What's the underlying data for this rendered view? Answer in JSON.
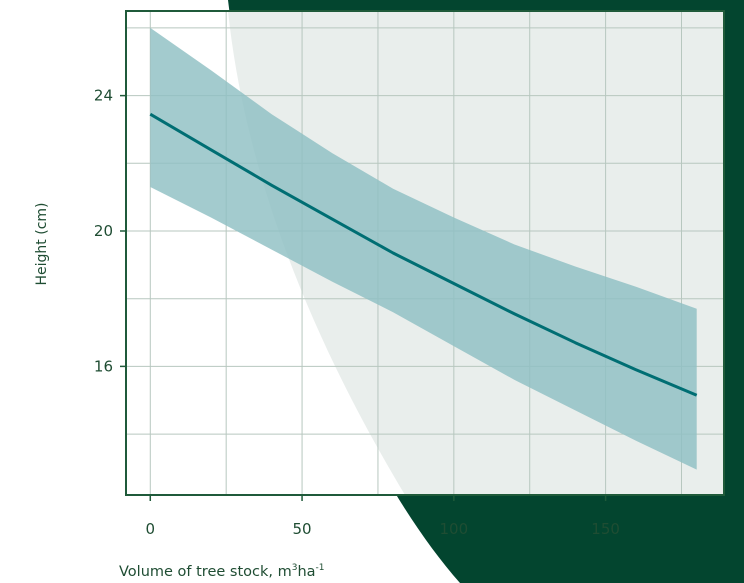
{
  "colors": {
    "background_dark": "#03452f",
    "background_light": "#ffffff",
    "plot_panel": "#e9eeec",
    "frame": "#1f5a3a",
    "grid": "#b7c7bf",
    "band": "#8fbfc3",
    "line": "#006e73",
    "text": "#1f4d33"
  },
  "chart_data": {
    "type": "line",
    "xlabel_parts": [
      "Volume of tree stock, m",
      "3",
      "ha",
      "-1"
    ],
    "xlabel": "Volume of tree stock, m³ha⁻¹",
    "ylabel": "Height (cm)",
    "xlim": [
      -8,
      189
    ],
    "ylim": [
      12.2,
      26.5
    ],
    "x_ticks": [
      0,
      50,
      100,
      150
    ],
    "x_tick_labels": [
      "0",
      "50",
      "100",
      "150"
    ],
    "y_ticks": [
      16,
      20,
      24
    ],
    "y_tick_labels": [
      "16",
      "20",
      "24"
    ],
    "x_grid": [
      0,
      25,
      50,
      75,
      100,
      125,
      150,
      175
    ],
    "y_grid": [
      14,
      16,
      18,
      20,
      22,
      24,
      26
    ],
    "grid": true,
    "series": [
      {
        "x": [
          0,
          20,
          40,
          60,
          80,
          100,
          120,
          140,
          160,
          180
        ],
        "y": [
          23.45,
          22.4,
          21.35,
          20.35,
          19.35,
          18.45,
          17.55,
          16.7,
          15.9,
          15.15
        ],
        "lower": [
          21.3,
          20.4,
          19.45,
          18.5,
          17.6,
          16.6,
          15.6,
          14.7,
          13.8,
          12.95
        ],
        "upper": [
          26.0,
          24.75,
          23.45,
          22.3,
          21.25,
          20.4,
          19.6,
          18.95,
          18.35,
          17.7
        ]
      }
    ]
  }
}
